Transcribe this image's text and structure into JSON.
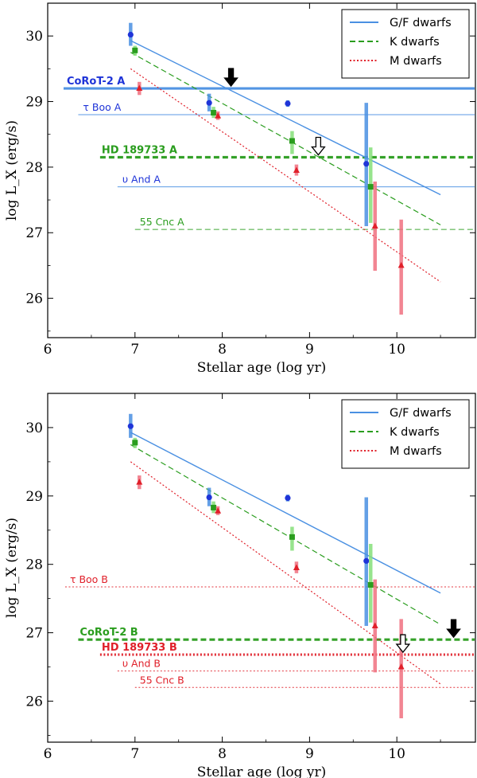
{
  "chart_data": [
    {
      "type": "scatter",
      "panel": "top",
      "xlabel": "Stellar age (log yr)",
      "ylabel": "log L_X (erg/s)",
      "xlim": [
        6.0,
        10.9
      ],
      "ylim": [
        25.4,
        30.5
      ],
      "xticks": [
        6,
        7,
        8,
        9,
        10
      ],
      "yticks": [
        26,
        27,
        28,
        29,
        30
      ],
      "grid": false,
      "legend_position": "top-right",
      "series": [
        {
          "name": "G/F dwarfs",
          "color": "#1f34d8",
          "bar_color": "#4a90e2",
          "marker": "circle",
          "line_style": "solid",
          "fit": [
            [
              6.95,
              29.93
            ],
            [
              10.5,
              27.58
            ]
          ],
          "points": [
            {
              "x": 6.95,
              "y": 30.02,
              "ylo": 29.85,
              "yhi": 30.2
            },
            {
              "x": 7.85,
              "y": 28.98,
              "ylo": 28.85,
              "yhi": 29.12
            },
            {
              "x": 8.75,
              "y": 28.97,
              "ylo": 28.92,
              "yhi": 29.02
            },
            {
              "x": 9.65,
              "y": 28.05,
              "ylo": 27.1,
              "yhi": 28.98
            }
          ]
        },
        {
          "name": "K dwarfs",
          "color": "#2a9d1e",
          "bar_color": "#86e07a",
          "marker": "square",
          "line_style": "dashed",
          "fit": [
            [
              6.95,
              29.75
            ],
            [
              10.5,
              27.12
            ]
          ],
          "points": [
            {
              "x": 7.0,
              "y": 29.78,
              "ylo": 29.7,
              "yhi": 29.85
            },
            {
              "x": 7.9,
              "y": 28.83,
              "ylo": 28.75,
              "yhi": 28.92
            },
            {
              "x": 8.8,
              "y": 28.4,
              "ylo": 28.2,
              "yhi": 28.55
            },
            {
              "x": 9.7,
              "y": 27.7,
              "ylo": 27.15,
              "yhi": 28.3
            }
          ]
        },
        {
          "name": "M dwarfs",
          "color": "#e0202a",
          "bar_color": "#f07080",
          "marker": "triangle",
          "line_style": "dotted",
          "fit": [
            [
              6.95,
              29.5
            ],
            [
              10.5,
              26.25
            ]
          ],
          "points": [
            {
              "x": 7.05,
              "y": 29.2,
              "ylo": 29.1,
              "yhi": 29.3
            },
            {
              "x": 7.95,
              "y": 28.78,
              "ylo": 28.72,
              "yhi": 28.85
            },
            {
              "x": 8.85,
              "y": 27.95,
              "ylo": 27.87,
              "yhi": 28.04
            },
            {
              "x": 9.75,
              "y": 27.1,
              "ylo": 26.42,
              "yhi": 27.78
            },
            {
              "x": 10.05,
              "y": 26.5,
              "ylo": 25.75,
              "yhi": 27.2
            }
          ]
        }
      ],
      "hlines": [
        {
          "label": "CoRoT-2 A",
          "y": 29.2,
          "x_start": 6.2,
          "style": "solid",
          "thick": true,
          "bold": true,
          "color": "#4a90e2",
          "text_color": "#1f34d8"
        },
        {
          "label": "τ Boo A",
          "y": 28.8,
          "x_start": 6.35,
          "style": "solid",
          "thick": false,
          "bold": false,
          "color": "#4a90e2",
          "text_color": "#1f34d8"
        },
        {
          "label": "HD 189733 A",
          "y": 28.15,
          "x_start": 6.6,
          "style": "dashed",
          "thick": true,
          "bold": true,
          "color": "#2a9d1e",
          "text_color": "#2a9d1e"
        },
        {
          "label": "υ And A",
          "y": 27.7,
          "x_start": 6.8,
          "style": "solid",
          "thick": false,
          "bold": false,
          "color": "#4a90e2",
          "text_color": "#1f34d8"
        },
        {
          "label": "55 Cnc A",
          "y": 27.05,
          "x_start": 7.0,
          "style": "dashed",
          "thick": false,
          "bold": false,
          "color": "#2a9d1e",
          "text_color": "#2a9d1e"
        }
      ],
      "arrows": [
        {
          "x": 8.1,
          "y": 29.2,
          "filled": true
        },
        {
          "x": 9.1,
          "y": 28.15,
          "filled": false
        }
      ]
    },
    {
      "type": "scatter",
      "panel": "bottom",
      "xlabel": "Stellar age (log yr)",
      "ylabel": "log L_X (erg/s)",
      "xlim": [
        6.0,
        10.9
      ],
      "ylim": [
        25.4,
        30.5
      ],
      "xticks": [
        6,
        7,
        8,
        9,
        10
      ],
      "yticks": [
        26,
        27,
        28,
        29,
        30
      ],
      "grid": false,
      "legend_position": "top-right",
      "series": [
        {
          "name": "G/F dwarfs",
          "color": "#1f34d8",
          "bar_color": "#4a90e2",
          "marker": "circle",
          "line_style": "solid",
          "fit": [
            [
              6.95,
              29.93
            ],
            [
              10.5,
              27.58
            ]
          ],
          "points": [
            {
              "x": 6.95,
              "y": 30.02,
              "ylo": 29.85,
              "yhi": 30.2
            },
            {
              "x": 7.85,
              "y": 28.98,
              "ylo": 28.85,
              "yhi": 29.12
            },
            {
              "x": 8.75,
              "y": 28.97,
              "ylo": 28.92,
              "yhi": 29.02
            },
            {
              "x": 9.65,
              "y": 28.05,
              "ylo": 27.1,
              "yhi": 28.98
            }
          ]
        },
        {
          "name": "K dwarfs",
          "color": "#2a9d1e",
          "bar_color": "#86e07a",
          "marker": "square",
          "line_style": "dashed",
          "fit": [
            [
              6.95,
              29.75
            ],
            [
              10.5,
              27.12
            ]
          ],
          "points": [
            {
              "x": 7.0,
              "y": 29.78,
              "ylo": 29.7,
              "yhi": 29.85
            },
            {
              "x": 7.9,
              "y": 28.83,
              "ylo": 28.75,
              "yhi": 28.92
            },
            {
              "x": 8.8,
              "y": 28.4,
              "ylo": 28.2,
              "yhi": 28.55
            },
            {
              "x": 9.7,
              "y": 27.7,
              "ylo": 27.15,
              "yhi": 28.3
            }
          ]
        },
        {
          "name": "M dwarfs",
          "color": "#e0202a",
          "bar_color": "#f07080",
          "marker": "triangle",
          "line_style": "dotted",
          "fit": [
            [
              6.95,
              29.5
            ],
            [
              10.5,
              26.25
            ]
          ],
          "points": [
            {
              "x": 7.05,
              "y": 29.2,
              "ylo": 29.1,
              "yhi": 29.3
            },
            {
              "x": 7.95,
              "y": 28.78,
              "ylo": 28.72,
              "yhi": 28.85
            },
            {
              "x": 8.85,
              "y": 27.95,
              "ylo": 27.87,
              "yhi": 28.04
            },
            {
              "x": 9.75,
              "y": 27.1,
              "ylo": 26.42,
              "yhi": 27.78
            },
            {
              "x": 10.05,
              "y": 26.5,
              "ylo": 25.75,
              "yhi": 27.2
            }
          ]
        }
      ],
      "hlines": [
        {
          "label": "τ Boo B",
          "y": 27.67,
          "x_start": 6.2,
          "style": "dotted",
          "thick": false,
          "bold": false,
          "color": "#e0202a",
          "text_color": "#e0202a"
        },
        {
          "label": "CoRoT-2 B",
          "y": 26.9,
          "x_start": 6.35,
          "style": "dashed",
          "thick": true,
          "bold": true,
          "color": "#2a9d1e",
          "text_color": "#2a9d1e"
        },
        {
          "label": "HD 189733 B",
          "y": 26.68,
          "x_start": 6.6,
          "style": "dotted",
          "thick": true,
          "bold": true,
          "color": "#e0202a",
          "text_color": "#e0202a"
        },
        {
          "label": "υ And B",
          "y": 26.44,
          "x_start": 6.8,
          "style": "dotted",
          "thick": false,
          "bold": false,
          "color": "#e0202a",
          "text_color": "#e0202a"
        },
        {
          "label": "55 Cnc B",
          "y": 26.2,
          "x_start": 7.0,
          "style": "dotted",
          "thick": false,
          "bold": false,
          "color": "#e0202a",
          "text_color": "#e0202a"
        }
      ],
      "arrows": [
        {
          "x": 10.65,
          "y": 26.9,
          "filled": true
        },
        {
          "x": 10.07,
          "y": 26.68,
          "filled": false
        }
      ]
    }
  ]
}
